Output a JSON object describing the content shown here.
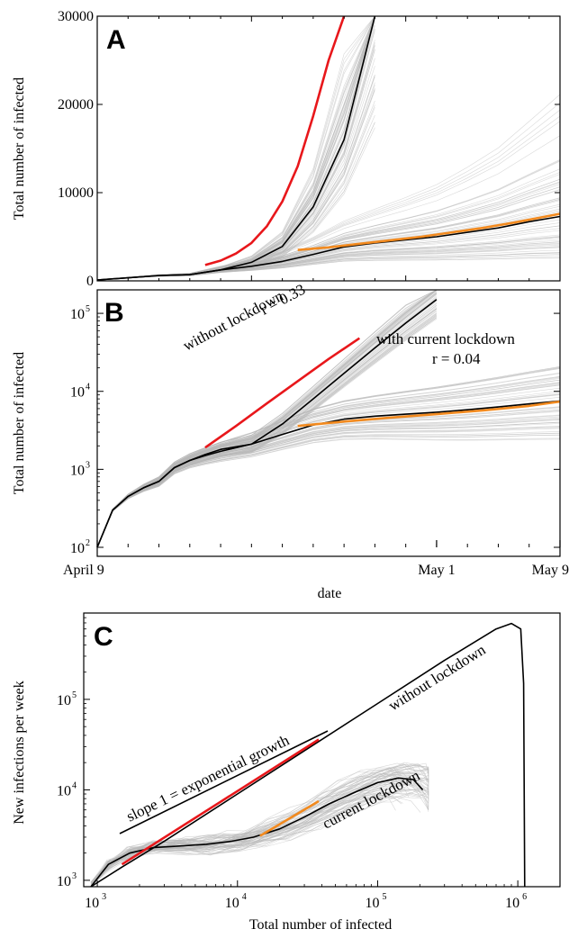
{
  "chart_data": [
    {
      "type": "line",
      "panel_label": "A",
      "ylabel": "Total number of infected",
      "yscale": "linear",
      "ylim": [
        0,
        30000
      ],
      "x_range_days": [
        0,
        30
      ],
      "y_ticks": [
        "0",
        "10000",
        "20000",
        "30000"
      ],
      "y_tick_values": [
        0,
        10000,
        20000,
        30000
      ],
      "series": [
        {
          "key": "without_mean",
          "color": "#000000",
          "x": [
            0,
            2,
            4,
            6,
            8,
            10,
            12,
            14,
            16,
            18,
            20,
            21,
            22,
            23,
            24,
            25,
            26,
            27,
            28,
            29,
            30
          ],
          "y": [
            100,
            350,
            600,
            700,
            1250,
            2100,
            3900,
            8400,
            16000,
            30000,
            null,
            null,
            null,
            null,
            null,
            null,
            null,
            null,
            null,
            null,
            null
          ]
        },
        {
          "key": "without_fit",
          "color": "#e8171b",
          "x": [
            7,
            8,
            9,
            10,
            11,
            12,
            13,
            14,
            15,
            16
          ],
          "y": [
            1800,
            2300,
            3100,
            4300,
            6200,
            9000,
            13000,
            18700,
            25000,
            30000
          ]
        },
        {
          "key": "with_mean",
          "color": "#000000",
          "x": [
            0,
            2,
            4,
            6,
            8,
            10,
            12,
            14,
            16,
            18,
            20,
            22,
            24,
            26,
            28,
            30
          ],
          "y": [
            100,
            350,
            600,
            700,
            1250,
            1650,
            2200,
            3000,
            3850,
            4300,
            4650,
            5000,
            5500,
            6000,
            6700,
            7300
          ]
        },
        {
          "key": "with_fit",
          "color": "#f28a1f",
          "x": [
            13,
            15,
            17,
            19,
            21,
            23,
            25,
            27,
            30
          ],
          "y": [
            3500,
            3800,
            4200,
            4600,
            5000,
            5500,
            6000,
            6600,
            7600
          ]
        }
      ]
    },
    {
      "type": "line",
      "panel_label": "B",
      "ylabel": "Total number of infected",
      "xlabel": "date",
      "yscale": "log",
      "ylim": [
        100,
        200000
      ],
      "x_ticks": [
        "April 9",
        "May 1",
        "May 9"
      ],
      "x_tick_days": [
        0,
        22,
        30
      ],
      "y_tick_exponents": [
        2,
        3,
        4,
        5
      ],
      "series": [
        {
          "key": "without_mean",
          "color": "#000000",
          "x": [
            0,
            1,
            2,
            3,
            4,
            5,
            6,
            7,
            8,
            10,
            12,
            14,
            16,
            18,
            20,
            22,
            24,
            26,
            28,
            30
          ],
          "y": [
            100,
            300,
            450,
            580,
            700,
            1050,
            1300,
            1550,
            1800,
            2100,
            3800,
            8000,
            17000,
            36000,
            75000,
            150000,
            null,
            null,
            null,
            null
          ]
        },
        {
          "key": "without_fit",
          "color": "#e8171b",
          "x": [
            7,
            9,
            11,
            13,
            15,
            17
          ],
          "y": [
            1900,
            3600,
            7000,
            13500,
            26000,
            48000
          ]
        },
        {
          "key": "with_mean",
          "color": "#000000",
          "x": [
            0,
            1,
            2,
            3,
            4,
            5,
            6,
            7,
            8,
            10,
            12,
            14,
            16,
            18,
            20,
            22,
            24,
            26,
            28,
            30
          ],
          "y": [
            100,
            300,
            450,
            580,
            700,
            1050,
            1300,
            1500,
            1700,
            2100,
            2800,
            3700,
            4400,
            4800,
            5100,
            5400,
            5800,
            6300,
            6900,
            7500
          ]
        },
        {
          "key": "with_fit",
          "color": "#f28a1f",
          "x": [
            13,
            16,
            19,
            22,
            25,
            28,
            30
          ],
          "y": [
            3600,
            4100,
            4600,
            5100,
            5700,
            6500,
            7400
          ]
        }
      ],
      "annotations": [
        {
          "text": "without lockdown",
          "for": "without"
        },
        {
          "text": "r = 0.33",
          "for": "without"
        },
        {
          "text": "with current lockdown",
          "for": "with"
        },
        {
          "text": "r = 0.04",
          "for": "with"
        }
      ]
    },
    {
      "type": "line",
      "panel_label": "C",
      "xlabel": "Total number of infected",
      "ylabel": "New infections per week",
      "xscale": "log",
      "yscale": "log",
      "xlim": [
        800,
        2000000
      ],
      "ylim": [
        850,
        900000
      ],
      "x_tick_exponents": [
        3,
        4,
        5,
        6
      ],
      "y_tick_exponents": [
        3,
        4,
        5
      ],
      "series": [
        {
          "key": "without_lockdown",
          "color": "#000000",
          "x": [
            900,
            1500,
            3000,
            10000,
            30000,
            100000,
            300000,
            700000,
            900000,
            1050000,
            1100000,
            1120000
          ],
          "y": [
            850,
            1400,
            2700,
            9000,
            27000,
            90000,
            270000,
            600000,
            690000,
            600000,
            150000,
            850
          ]
        },
        {
          "key": "current_lockdown",
          "color": "#000000",
          "x": [
            900,
            1200,
            1700,
            2500,
            4000,
            6000,
            9000,
            13000,
            20000,
            30000,
            45000,
            70000,
            100000,
            140000,
            180000,
            210000
          ],
          "y": [
            850,
            1500,
            2000,
            2300,
            2400,
            2500,
            2700,
            3000,
            3700,
            5000,
            7000,
            9500,
            12000,
            13500,
            13000,
            10000
          ]
        },
        {
          "key": "exponential_reference",
          "color": "#e8171b",
          "x": [
            1500,
            38000
          ],
          "y": [
            1500,
            36000
          ]
        },
        {
          "key": "lockdown_fit",
          "color": "#f28a1f",
          "x": [
            14500,
            38000
          ],
          "y": [
            3100,
            7500
          ]
        }
      ],
      "annotations": [
        {
          "text": "slope 1  =  exponential growth"
        },
        {
          "text": "without lockdown"
        },
        {
          "text": "current lockdown"
        }
      ]
    }
  ]
}
